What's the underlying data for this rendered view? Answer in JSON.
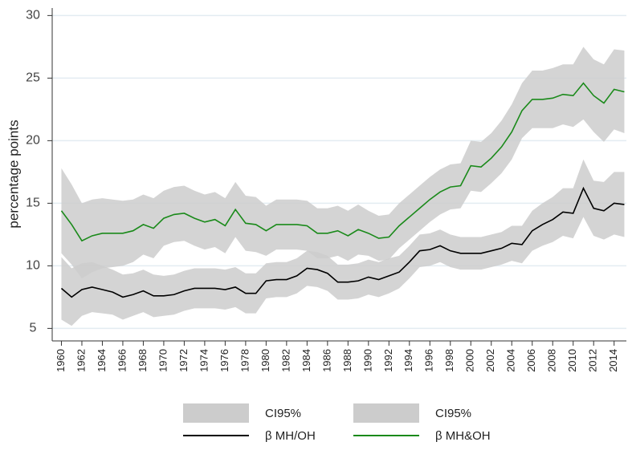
{
  "chart_data": {
    "type": "line",
    "ylabel": "percentage points",
    "x": [
      1960,
      1961,
      1962,
      1963,
      1964,
      1965,
      1966,
      1967,
      1968,
      1969,
      1970,
      1971,
      1972,
      1973,
      1974,
      1975,
      1976,
      1977,
      1978,
      1979,
      1980,
      1981,
      1982,
      1983,
      1984,
      1985,
      1986,
      1987,
      1988,
      1989,
      1990,
      1991,
      1992,
      1993,
      1994,
      1995,
      1996,
      1997,
      1998,
      1999,
      2000,
      2001,
      2002,
      2003,
      2004,
      2005,
      2006,
      2007,
      2008,
      2009,
      2010,
      2011,
      2012,
      2013,
      2014,
      2015
    ],
    "xlim": [
      1959.1,
      2015.2
    ],
    "xticks": [
      1960,
      1962,
      1964,
      1966,
      1968,
      1970,
      1972,
      1974,
      1976,
      1978,
      1980,
      1982,
      1984,
      1986,
      1988,
      1990,
      1992,
      1994,
      1996,
      1998,
      2000,
      2002,
      2004,
      2006,
      2008,
      2010,
      2012,
      2014
    ],
    "ylim": [
      4,
      30.6
    ],
    "yticks": [
      5,
      10,
      15,
      20,
      25,
      30
    ],
    "grid": true,
    "series": [
      {
        "name": "β MH/OH",
        "color": "#000000",
        "values": [
          8.2,
          7.5,
          8.1,
          8.3,
          8.1,
          7.9,
          7.5,
          7.7,
          8.0,
          7.6,
          7.6,
          7.7,
          8.0,
          8.2,
          8.2,
          8.2,
          8.1,
          8.3,
          7.8,
          7.8,
          8.8,
          8.9,
          8.9,
          9.2,
          9.8,
          9.7,
          9.4,
          8.7,
          8.7,
          8.8,
          9.1,
          8.9,
          9.2,
          9.5,
          10.3,
          11.2,
          11.3,
          11.6,
          11.2,
          11.0,
          11.0,
          11.0,
          11.2,
          11.4,
          11.8,
          11.7,
          12.8,
          13.3,
          13.7,
          14.3,
          14.2,
          16.2,
          14.6,
          14.4,
          15.0,
          14.9
        ],
        "ci": {
          "name": "CI95%",
          "color": "#cccccc",
          "lower": [
            5.7,
            5.2,
            6.0,
            6.3,
            6.2,
            6.1,
            5.7,
            6.0,
            6.3,
            5.9,
            6.0,
            6.1,
            6.4,
            6.6,
            6.6,
            6.6,
            6.5,
            6.7,
            6.2,
            6.2,
            7.4,
            7.5,
            7.5,
            7.8,
            8.4,
            8.3,
            8.0,
            7.3,
            7.3,
            7.4,
            7.7,
            7.5,
            7.8,
            8.2,
            9.0,
            9.9,
            10.0,
            10.3,
            9.9,
            9.7,
            9.7,
            9.7,
            9.9,
            10.1,
            10.4,
            10.2,
            11.2,
            11.6,
            11.9,
            12.4,
            12.2,
            13.9,
            12.4,
            12.1,
            12.5,
            12.3
          ],
          "upper": [
            10.7,
            9.8,
            10.2,
            10.3,
            10.0,
            9.7,
            9.3,
            9.4,
            9.7,
            9.3,
            9.2,
            9.3,
            9.6,
            9.8,
            9.8,
            9.8,
            9.7,
            9.9,
            9.4,
            9.4,
            10.2,
            10.3,
            10.3,
            10.6,
            11.2,
            11.1,
            10.8,
            10.1,
            10.1,
            10.2,
            10.5,
            10.3,
            10.6,
            10.8,
            11.6,
            12.5,
            12.6,
            12.9,
            12.5,
            12.3,
            12.3,
            12.3,
            12.5,
            12.7,
            13.2,
            13.2,
            14.4,
            15.0,
            15.5,
            16.2,
            16.2,
            18.5,
            16.8,
            16.7,
            17.5,
            17.5
          ]
        }
      },
      {
        "name": "β MH&OH",
        "color": "#1a8a1a",
        "values": [
          14.4,
          13.3,
          12.0,
          12.4,
          12.6,
          12.6,
          12.6,
          12.8,
          13.3,
          13.0,
          13.8,
          14.1,
          14.2,
          13.8,
          13.5,
          13.7,
          13.2,
          14.5,
          13.4,
          13.3,
          12.8,
          13.3,
          13.3,
          13.3,
          13.2,
          12.6,
          12.6,
          12.8,
          12.4,
          12.9,
          12.6,
          12.2,
          12.3,
          13.2,
          13.9,
          14.6,
          15.3,
          15.9,
          16.3,
          16.4,
          18.0,
          17.9,
          18.6,
          19.5,
          20.7,
          22.4,
          23.3,
          23.3,
          23.4,
          23.7,
          23.6,
          24.6,
          23.6,
          23.0,
          24.1,
          23.9
        ],
        "ci": {
          "name": "CI95%",
          "color": "#cccccc",
          "lower": [
            11.0,
            10.1,
            9.0,
            9.5,
            9.8,
            9.9,
            10.0,
            10.3,
            10.9,
            10.6,
            11.6,
            11.9,
            12.0,
            11.6,
            11.3,
            11.5,
            11.0,
            12.3,
            11.2,
            11.1,
            10.8,
            11.3,
            11.3,
            11.3,
            11.2,
            10.6,
            10.6,
            10.8,
            10.4,
            10.9,
            10.8,
            10.4,
            10.5,
            11.4,
            12.1,
            12.8,
            13.5,
            14.1,
            14.5,
            14.6,
            16.0,
            15.9,
            16.6,
            17.4,
            18.5,
            20.2,
            21.0,
            21.0,
            21.0,
            21.3,
            21.1,
            21.7,
            20.7,
            19.9,
            20.9,
            20.6
          ],
          "upper": [
            17.8,
            16.5,
            15.0,
            15.3,
            15.4,
            15.3,
            15.2,
            15.3,
            15.7,
            15.4,
            16.0,
            16.3,
            16.4,
            16.0,
            15.7,
            15.9,
            15.4,
            16.7,
            15.6,
            15.5,
            14.8,
            15.3,
            15.3,
            15.3,
            15.2,
            14.6,
            14.6,
            14.8,
            14.4,
            14.9,
            14.4,
            14.0,
            14.1,
            15.0,
            15.7,
            16.4,
            17.1,
            17.7,
            18.1,
            18.2,
            20.0,
            19.9,
            20.6,
            21.6,
            22.9,
            24.6,
            25.6,
            25.6,
            25.8,
            26.1,
            26.1,
            27.5,
            26.5,
            26.1,
            27.3,
            27.2
          ]
        }
      }
    ]
  }
}
